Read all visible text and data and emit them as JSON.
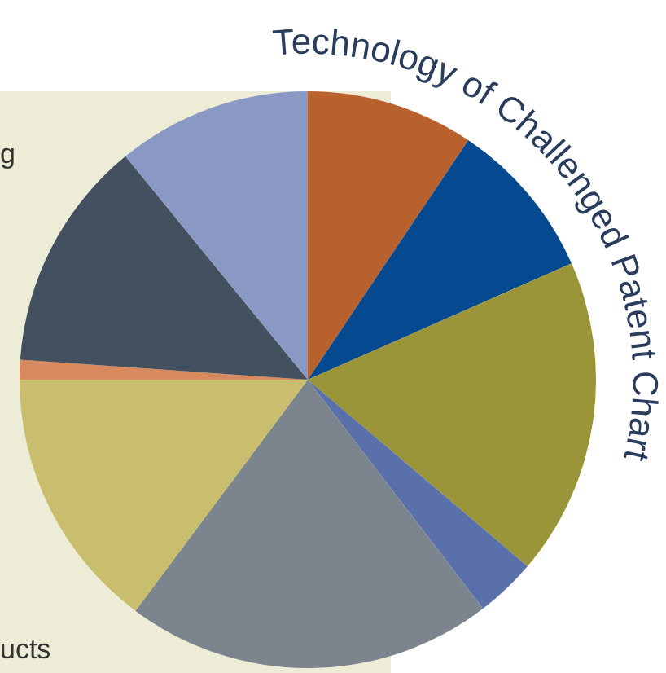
{
  "chart_data": {
    "type": "pie",
    "title": "Technology of Challenged Patent Chart",
    "categories": [
      null,
      null,
      null,
      null,
      null,
      null,
      null,
      null,
      null
    ],
    "values": [
      9.4,
      9.0,
      17.8,
      3.4,
      20.6,
      14.8,
      1.1,
      13.0,
      10.9
    ],
    "colors": [
      "#b8612c",
      "#054a91",
      "#9a9538",
      "#5a70ab",
      "#7c858e",
      "#c9be6e",
      "#d8895e",
      "#42505f",
      "#8a99c4"
    ],
    "annotations": [
      "g",
      "ucts"
    ]
  }
}
